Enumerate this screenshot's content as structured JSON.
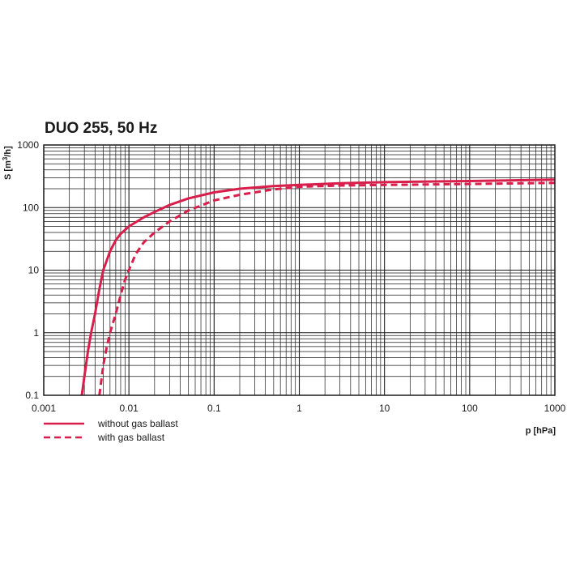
{
  "chart_data": {
    "type": "line",
    "title": "DUO 255, 50 Hz",
    "xlabel_main": "p",
    "xlabel_unit": "[hPa]",
    "ylabel_main": "S",
    "ylabel_unit_pre": "[m",
    "ylabel_unit_sup": "3",
    "ylabel_unit_post": "/h]",
    "x_scale": "log",
    "y_scale": "log",
    "xlim": [
      0.001,
      1000
    ],
    "ylim": [
      0.1,
      1000
    ],
    "x_ticks": [
      "0.001",
      "0.01",
      "0.1",
      "1",
      "10",
      "100",
      "1000"
    ],
    "y_ticks": [
      "0.1",
      "1",
      "10",
      "100",
      "1000"
    ],
    "grid": true,
    "legend_position": "bottom-left",
    "colors": {
      "series": "#d81e4a",
      "axis": "#1a1a1a",
      "grid": "#1a1a1a"
    },
    "series": [
      {
        "name": "without gas ballast",
        "style": "solid",
        "points": [
          [
            0.0028,
            0.1
          ],
          [
            0.003,
            0.2
          ],
          [
            0.0033,
            0.5
          ],
          [
            0.0036,
            1.0
          ],
          [
            0.004,
            2.0
          ],
          [
            0.0045,
            5.0
          ],
          [
            0.005,
            10.0
          ],
          [
            0.006,
            20.0
          ],
          [
            0.007,
            30.0
          ],
          [
            0.008,
            38.0
          ],
          [
            0.01,
            50.0
          ],
          [
            0.015,
            70.0
          ],
          [
            0.02,
            85.0
          ],
          [
            0.03,
            110.0
          ],
          [
            0.05,
            140.0
          ],
          [
            0.1,
            175.0
          ],
          [
            0.2,
            200.0
          ],
          [
            0.5,
            220.0
          ],
          [
            1,
            230.0
          ],
          [
            3,
            245.0
          ],
          [
            10,
            255.0
          ],
          [
            100,
            265.0
          ],
          [
            1000,
            280.0
          ]
        ]
      },
      {
        "name": "with gas ballast",
        "style": "dashed",
        "points": [
          [
            0.0045,
            0.1
          ],
          [
            0.005,
            0.3
          ],
          [
            0.0055,
            0.6
          ],
          [
            0.006,
            1.0
          ],
          [
            0.007,
            2.0
          ],
          [
            0.008,
            4.0
          ],
          [
            0.009,
            7.0
          ],
          [
            0.01,
            10.0
          ],
          [
            0.012,
            18.0
          ],
          [
            0.015,
            28.0
          ],
          [
            0.02,
            40.0
          ],
          [
            0.03,
            60.0
          ],
          [
            0.05,
            90.0
          ],
          [
            0.1,
            130.0
          ],
          [
            0.2,
            160.0
          ],
          [
            0.5,
            195.0
          ],
          [
            1,
            215.0
          ],
          [
            3,
            225.0
          ],
          [
            10,
            230.0
          ],
          [
            100,
            238.0
          ],
          [
            1000,
            248.0
          ]
        ]
      }
    ]
  }
}
